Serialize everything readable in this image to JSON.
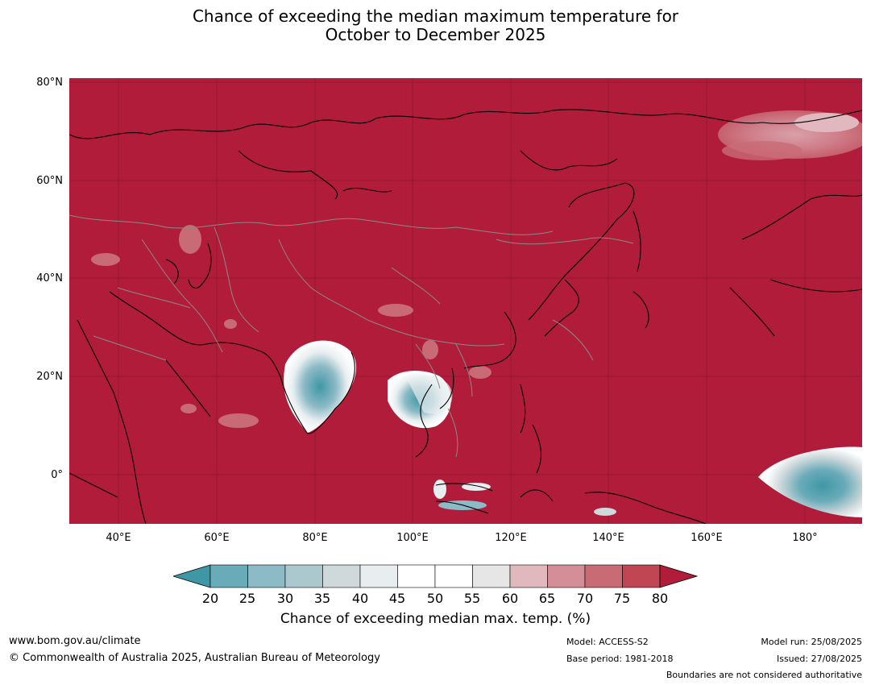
{
  "title": {
    "line1": "Chance of exceeding the median maximum temperature for",
    "line2": "October to December 2025"
  },
  "map": {
    "lat_labels": [
      "80°N",
      "60°N",
      "40°N",
      "20°N",
      "0°"
    ],
    "lon_labels": [
      "40°E",
      "60°E",
      "80°E",
      "100°E",
      "120°E",
      "140°E",
      "160°E",
      "180°"
    ],
    "colors": {
      "background_high": "#b01c3a",
      "low": "#3f97a6"
    }
  },
  "colorbar": {
    "ticks": [
      "20",
      "25",
      "30",
      "35",
      "40",
      "45",
      "50",
      "55",
      "60",
      "65",
      "70",
      "75",
      "80"
    ],
    "bin_colors": [
      "#3f97a6",
      "#6aabb9",
      "#8cbac6",
      "#abc8cf",
      "#cfd9db",
      "#e8eef0",
      "#ffffff",
      "#ffffff",
      "#e6e6e6",
      "#e0b8bd",
      "#d48e97",
      "#c96b75",
      "#bf4652",
      "#b01c3a"
    ],
    "label": "Chance of exceeding median max. temp. (%)"
  },
  "footer": {
    "website": "www.bom.gov.au/climate",
    "copyright": "© Commonwealth of Australia 2025, Australian Bureau of Meteorology",
    "model": "Model: ACCESS-S2",
    "base_period": "Base period: 1981-2018",
    "model_run": "Model run: 25/08/2025",
    "issued": "Issued: 27/08/2025",
    "disclaimer": "Boundaries are not considered authoritative"
  }
}
